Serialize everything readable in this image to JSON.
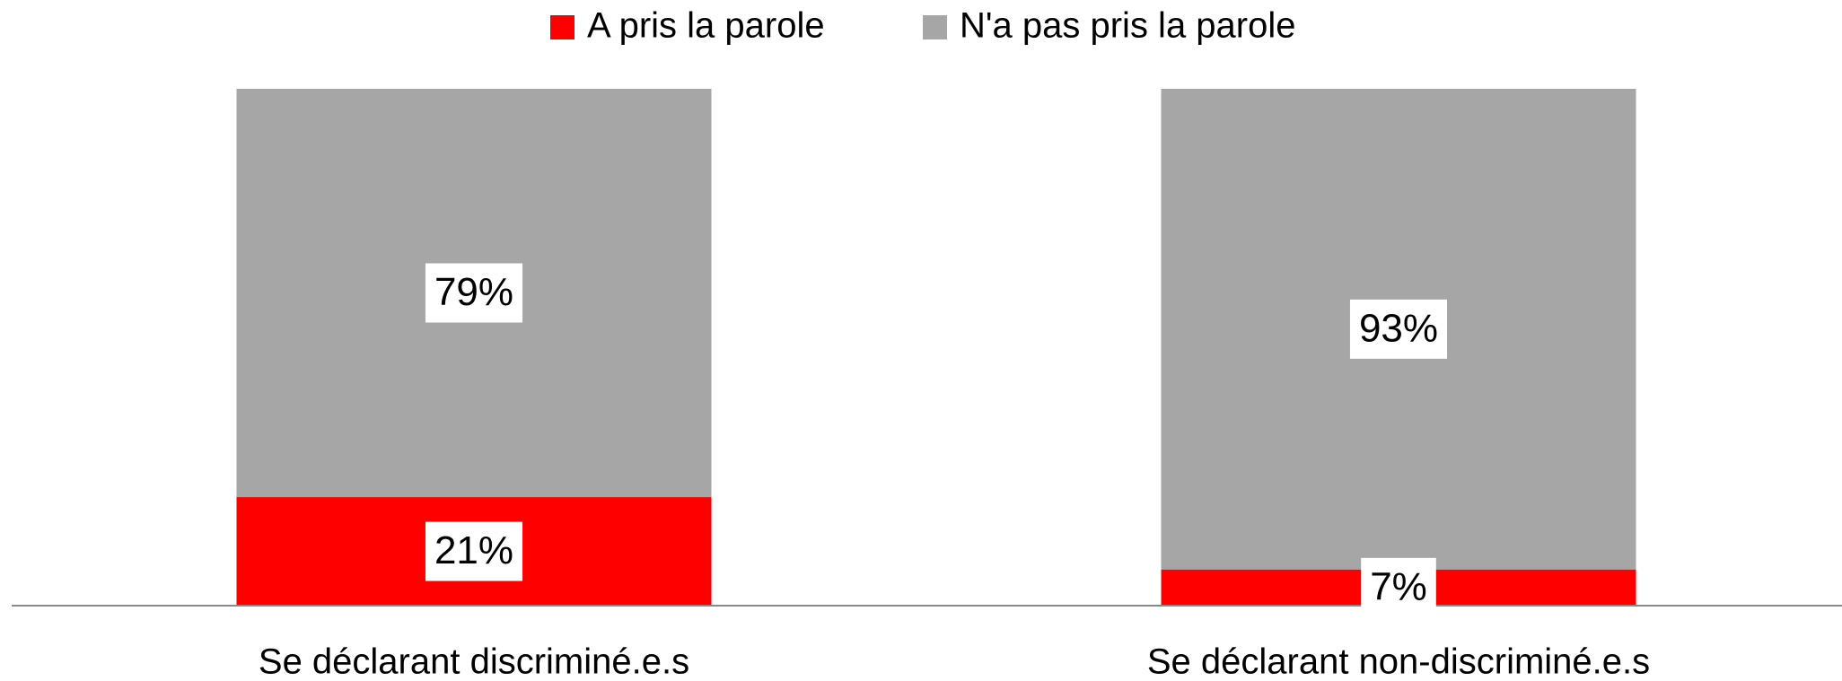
{
  "chart_data": {
    "type": "bar",
    "stacked": true,
    "categories": [
      "Se déclarant discriminé.e.s",
      "Se déclarant non-discriminé.e.s"
    ],
    "series": [
      {
        "name": "A pris la parole",
        "color": "#ff0000",
        "values": [
          21,
          7
        ],
        "value_labels": [
          "21%",
          "7%"
        ]
      },
      {
        "name": "N'a pas pris la parole",
        "color": "#a6a6a6",
        "values": [
          79,
          93
        ],
        "value_labels": [
          "79%",
          "93%"
        ]
      }
    ],
    "ylim": [
      0,
      100
    ],
    "legend": "top"
  }
}
